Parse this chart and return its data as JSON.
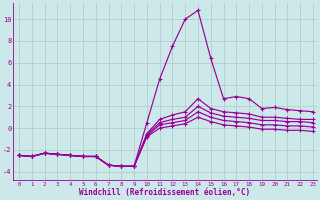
{
  "title": "",
  "xlabel": "Windchill (Refroidissement éolien,°C)",
  "ylabel": "",
  "bg_color": "#cce8e8",
  "line_color": "#990099",
  "grid_color": "#aacccc",
  "xlim": [
    -0.5,
    23.3
  ],
  "ylim": [
    -4.8,
    11.5
  ],
  "xticks": [
    0,
    1,
    2,
    3,
    4,
    5,
    6,
    7,
    8,
    9,
    10,
    11,
    12,
    13,
    14,
    15,
    16,
    17,
    18,
    19,
    20,
    21,
    22,
    23
  ],
  "yticks": [
    -4,
    -2,
    0,
    2,
    4,
    6,
    8,
    10
  ],
  "series": [
    [
      -2.5,
      -2.6,
      -2.3,
      -2.4,
      -2.5,
      -2.6,
      -2.6,
      -3.4,
      -3.5,
      -3.5,
      0.5,
      4.5,
      7.5,
      10.0,
      10.8,
      6.4,
      2.7,
      2.9,
      2.7,
      1.8,
      1.9,
      1.7,
      1.6,
      1.5
    ],
    [
      -2.5,
      -2.6,
      -2.3,
      -2.4,
      -2.5,
      -2.6,
      -2.6,
      -3.4,
      -3.5,
      -3.5,
      -0.5,
      0.8,
      1.2,
      1.5,
      2.7,
      1.8,
      1.5,
      1.4,
      1.3,
      1.0,
      1.0,
      0.9,
      0.8,
      0.8
    ],
    [
      -2.5,
      -2.6,
      -2.3,
      -2.4,
      -2.5,
      -2.6,
      -2.6,
      -3.4,
      -3.5,
      -3.5,
      -0.6,
      0.5,
      0.8,
      1.0,
      2.0,
      1.4,
      1.1,
      1.0,
      0.9,
      0.7,
      0.7,
      0.6,
      0.6,
      0.5
    ],
    [
      -2.5,
      -2.6,
      -2.3,
      -2.4,
      -2.5,
      -2.6,
      -2.6,
      -3.4,
      -3.5,
      -3.5,
      -0.7,
      0.3,
      0.5,
      0.7,
      1.5,
      1.0,
      0.7,
      0.6,
      0.5,
      0.3,
      0.3,
      0.2,
      0.2,
      0.1
    ],
    [
      -2.5,
      -2.6,
      -2.3,
      -2.4,
      -2.5,
      -2.6,
      -2.6,
      -3.4,
      -3.5,
      -3.5,
      -0.8,
      0.0,
      0.2,
      0.4,
      1.0,
      0.6,
      0.3,
      0.2,
      0.1,
      -0.1,
      -0.1,
      -0.2,
      -0.2,
      -0.3
    ]
  ]
}
